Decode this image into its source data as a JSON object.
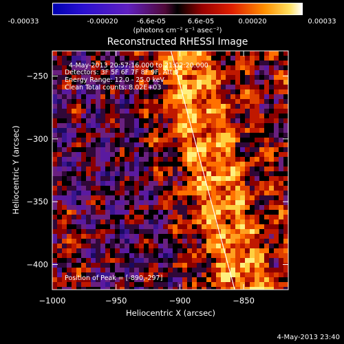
{
  "colorbar": {
    "ticks": [
      "-0.00033",
      "-0.00020",
      "-6.6e-05",
      "6.6e-05",
      "0.00020",
      "0.00033"
    ],
    "unit_label": "(photons cm⁻² s⁻¹ asec⁻²)",
    "vmin": -0.00033,
    "vmax": 0.00033
  },
  "overlay": {
    "line1": "4-May-2013 20:57:16.000 to 21:02:20.000",
    "line2": "Detectors: 3F 5F 6F 7F 8F 9F, Att 0",
    "line3": "Energy Range: 12.0 - 25.0 keV",
    "line4": "Clean    Total counts: 8.02E+03",
    "peak": "Position of Peak = [-890,-297]"
  },
  "footer": "4-May-2013 23:40",
  "chart_data": {
    "type": "heatmap",
    "title": "Reconstructed RHESSI Image",
    "xlabel": "Heliocentric X (arcsec)",
    "ylabel": "Heliocentric Y (arcsec)",
    "xlim": [
      -1000,
      -815
    ],
    "ylim": [
      -420,
      -230
    ],
    "xticks": [
      -1000,
      -950,
      -900,
      -850
    ],
    "yticks": [
      -400,
      -350,
      -300,
      -250
    ],
    "xtick_labels": [
      "−1000",
      "−950",
      "−900",
      "−850"
    ],
    "ytick_labels": [
      "−400",
      "−350",
      "−300",
      "−250"
    ],
    "colormap": "rainbow/hot (blue-purple-red-orange-yellow-white)",
    "limb_line": {
      "x": [
        -907,
        -857
      ],
      "y": [
        -230,
        -420
      ],
      "color": "#ffffff"
    },
    "peak_position": [
      -890,
      -297
    ]
  }
}
